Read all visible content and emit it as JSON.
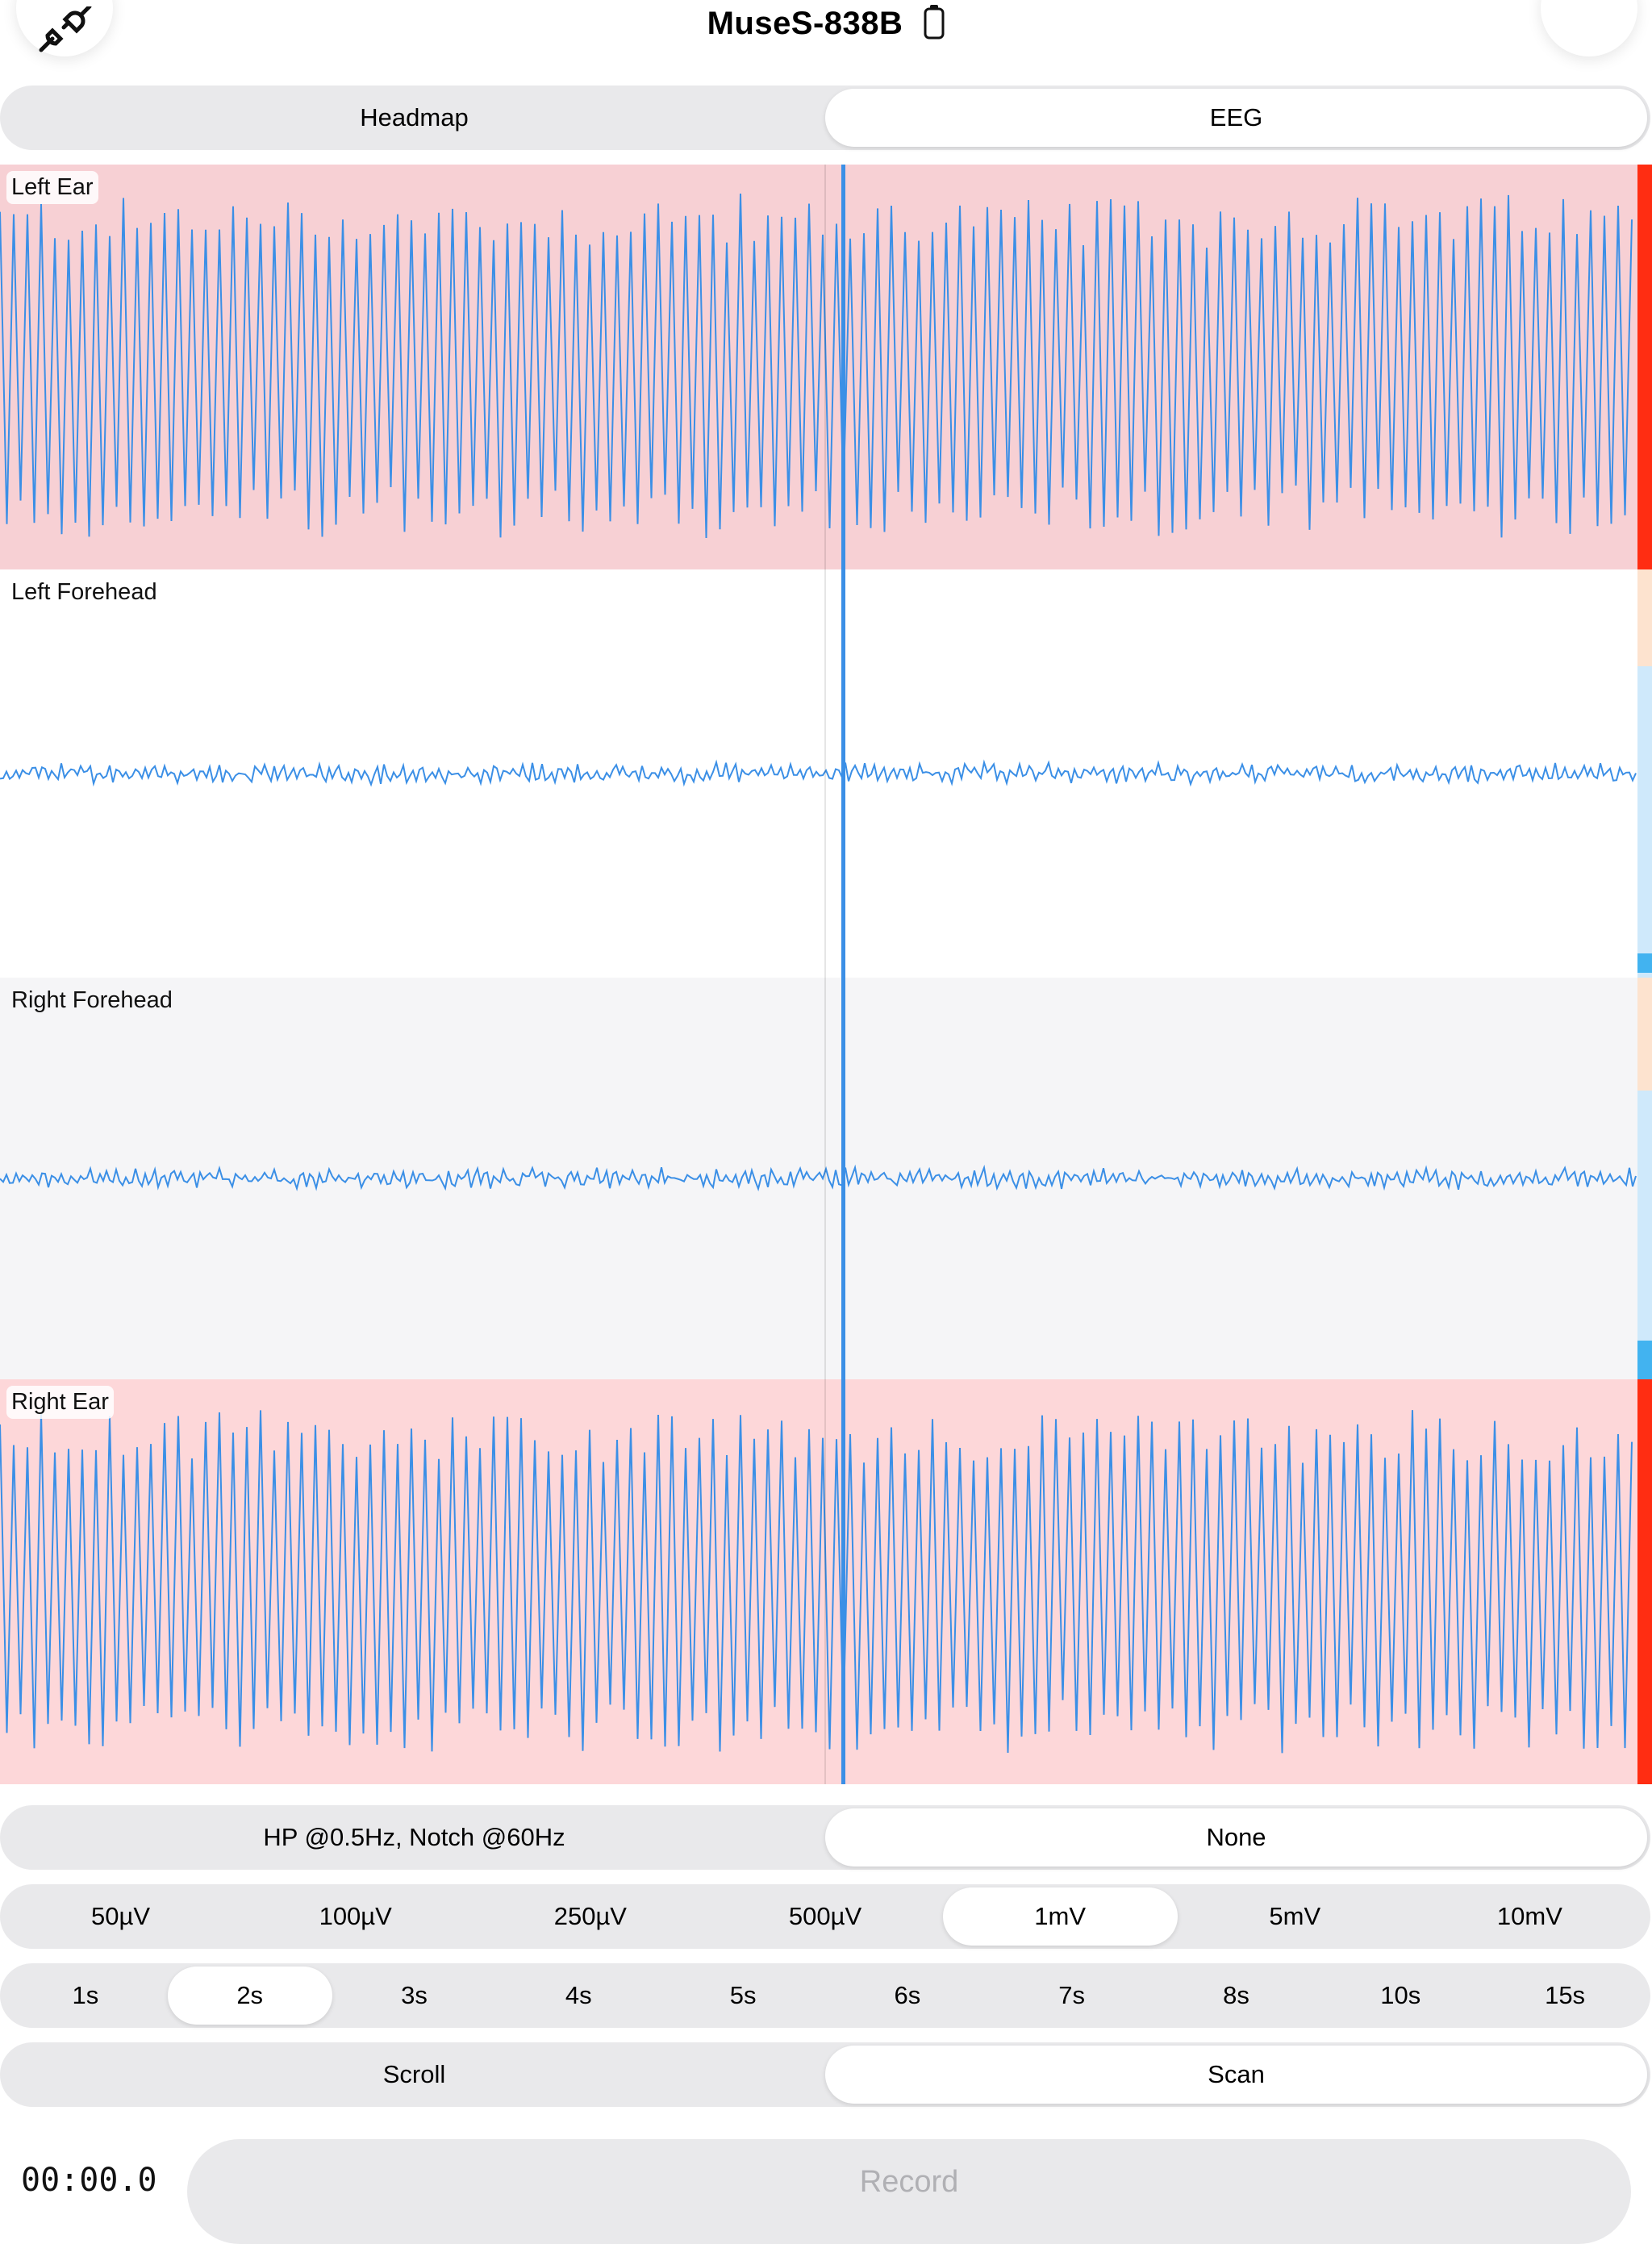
{
  "header": {
    "device_name": "MuseS-838B",
    "left_button_icon": "plug-disconnect-icon",
    "battery_icon": "battery-icon",
    "right_button_icon": "empty"
  },
  "view_tabs": {
    "options": [
      "Headmap",
      "EEG"
    ],
    "selected": "EEG"
  },
  "channels": [
    {
      "label": "Left Ear",
      "background": "#f7d0d4",
      "quality_color": "#ff2d12",
      "amplitude": "high"
    },
    {
      "label": "Left Forehead",
      "background": "#ffffff",
      "quality_color": "#cfe9fb",
      "amplitude": "low"
    },
    {
      "label": "Right Forehead",
      "background": "#f5f5f7",
      "quality_color": "#cfe9fb",
      "amplitude": "low"
    },
    {
      "label": "Right Ear",
      "background": "#fdd7d9",
      "quality_color": "#ff2d12",
      "amplitude": "high"
    }
  ],
  "trace_color": "#3b8fe6",
  "filter": {
    "options": [
      "HP @0.5Hz, Notch @60Hz",
      "None"
    ],
    "selected": "None"
  },
  "scale": {
    "options": [
      "50µV",
      "100µV",
      "250µV",
      "500µV",
      "1mV",
      "5mV",
      "10mV"
    ],
    "selected": "1mV"
  },
  "timebase": {
    "options": [
      "1s",
      "2s",
      "3s",
      "4s",
      "5s",
      "6s",
      "7s",
      "8s",
      "10s",
      "15s"
    ],
    "selected": "2s"
  },
  "mode": {
    "options": [
      "Scroll",
      "Scan"
    ],
    "selected": "Scan"
  },
  "recording": {
    "timer": "00:00.0",
    "button_label": "Record"
  }
}
